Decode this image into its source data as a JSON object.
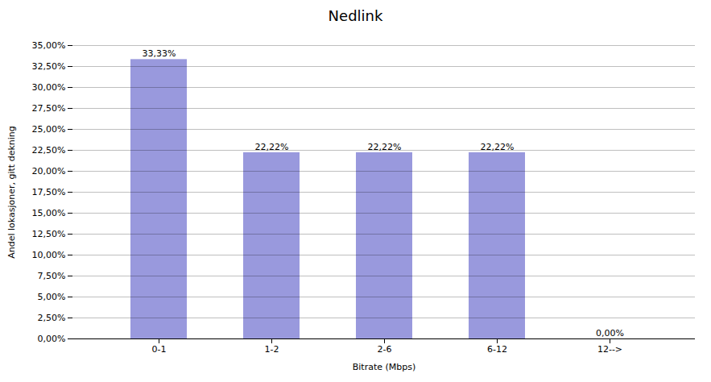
{
  "chart_data": {
    "type": "bar",
    "title": "Nedlink",
    "xlabel": "Bitrate (Mbps)",
    "ylabel": "Andel lokasjoner, gitt dekning",
    "categories": [
      "0-1",
      "1-2",
      "2-6",
      "6-12",
      "12-->"
    ],
    "values": [
      33.33,
      22.22,
      22.22,
      22.22,
      0.0
    ],
    "value_labels": [
      "33,33%",
      "22,22%",
      "22,22%",
      "22,22%",
      "0,00%"
    ],
    "data_labels": true,
    "color": "#9999dd",
    "ylim": [
      0,
      35.0
    ],
    "yticks": [
      {
        "value": 0,
        "label": "0,00%"
      },
      {
        "value": 2.5,
        "label": "2,50%"
      },
      {
        "value": 5.0,
        "label": "5,00%"
      },
      {
        "value": 7.5,
        "label": "7,50%"
      },
      {
        "value": 10.0,
        "label": "10,00%"
      },
      {
        "value": 12.5,
        "label": "12,50%"
      },
      {
        "value": 15.0,
        "label": "15,00%"
      },
      {
        "value": 17.5,
        "label": "17,50%"
      },
      {
        "value": 20.0,
        "label": "20,00%"
      },
      {
        "value": 22.5,
        "label": "22,50%"
      },
      {
        "value": 25.0,
        "label": "25,00%"
      },
      {
        "value": 27.5,
        "label": "27,50%"
      },
      {
        "value": 30.0,
        "label": "30,00%"
      },
      {
        "value": 32.5,
        "label": "32,50%"
      },
      {
        "value": 35.0,
        "label": "35,00%"
      }
    ],
    "grid": true
  }
}
